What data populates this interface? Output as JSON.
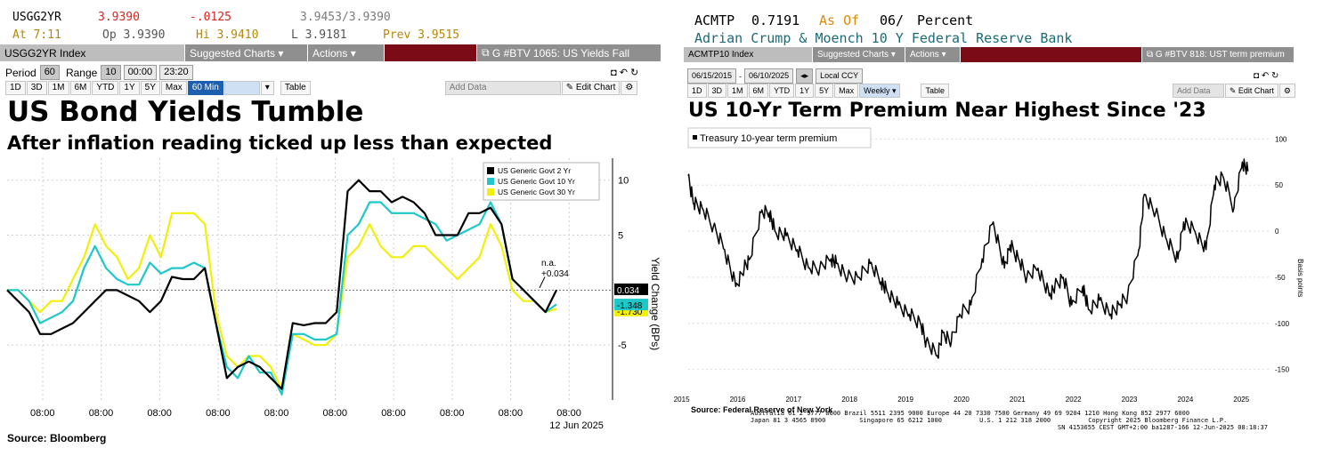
{
  "left": {
    "quote": {
      "ticker": "USGG2YR",
      "last": "3.9390",
      "change": "-.0125",
      "bidask": "3.9453/3.9390",
      "time": "At 7:11",
      "open": "Op 3.9390",
      "high": "Hi 3.9410",
      "low": "L 3.9181",
      "prev": "Prev 3.9515"
    },
    "toolbar": {
      "index": "USGG2YR Index",
      "suggested": "Suggested Charts",
      "actions": "Actions",
      "news": "G #BTV 1065: US Yields Fall"
    },
    "controls": {
      "period_label": "Period",
      "period": "60",
      "range_label": "Range",
      "range": "10",
      "start": "00:00",
      "end": "23:20"
    },
    "buttons": [
      "1D",
      "3D",
      "1M",
      "6M",
      "YTD",
      "1Y",
      "5Y",
      "Max",
      "60 Min"
    ],
    "table_label": "Table",
    "add_data": "Add Data",
    "edit_chart": "Edit Chart",
    "headline": "US Bond Yields Tumble",
    "subheadline": "After inflation reading ticked up less than expected",
    "source": "Source: Bloomberg",
    "colors": {
      "s2": "#000000",
      "s10": "#1ec8c8",
      "s30": "#f2ef0a"
    }
  },
  "right": {
    "quote": {
      "ticker": "ACMTP",
      "value": "0.7191",
      "asof": "As Of",
      "date": "06/",
      "unit": "Percent",
      "desc": "Adrian Crump & Moench 10 Y Federal Reserve Bank"
    },
    "toolbar": {
      "index": "ACMTP10 Index",
      "suggested": "Suggested Charts",
      "actions": "Actions",
      "news": "G #BTV 818: UST term premium"
    },
    "controls": {
      "start": "06/15/2015",
      "end": "06/10/2025",
      "currency": "Local CCY"
    },
    "buttons": [
      "1D",
      "3D",
      "1M",
      "6M",
      "YTD",
      "1Y",
      "5Y",
      "Max",
      "Weekly"
    ],
    "table_label": "Table",
    "add_data": "Add Data",
    "edit_chart": "Edit Chart",
    "headline": "US 10-Yr Term Premium Near Highest Since '23",
    "source": "Source: Federal Reserve of New York",
    "footer_line1": "Australia 61 2 9777 8600 Brazil 5511 2395 9000 Europe 44 20 7330 7500 Germany 49 69 9204 1210 Hong Kong 852 2977 6000",
    "footer_line2": "Japan 81 3 4565 8900         Singapore 65 6212 1000          U.S. 1 212 318 2000          Copyright 2025 Bloomberg Finance L.P.",
    "footer_line3": "SN 4153655 CEST GMT+2:00 ba1287-166 12-Jun-2025 08:18:37"
  },
  "chart_data": [
    {
      "type": "line",
      "title": "US Bond Yields Tumble",
      "subtitle": "After inflation reading ticked up less than expected",
      "ylabel": "Yield Change (BPs)",
      "x_tick_labels": [
        "08:00",
        "08:00",
        "08:00",
        "08:00",
        "08:00",
        "08:00",
        "08:00",
        "08:00",
        "08:00",
        "08:00\n12 Jun 2025"
      ],
      "y_ticks": [
        10,
        5,
        -5
      ],
      "ylim": [
        -10,
        12
      ],
      "annotation": "n.a.\n+0.034",
      "value_labels": {
        "s2": "0.034",
        "s10": "-1.348",
        "s30": "-1.730"
      },
      "series": [
        {
          "name": "US Generic Govt 2 Yr",
          "values": [
            0,
            -1,
            -2,
            -4,
            -4,
            -3.5,
            -3,
            -2,
            -1,
            0,
            0,
            -0.5,
            -1,
            -2,
            -1,
            1.2,
            1,
            1,
            2,
            -3,
            -8,
            -7,
            -6.5,
            -7,
            -8,
            -9,
            -3,
            -3.2,
            -3,
            -3,
            -2,
            9,
            10,
            9,
            9,
            8,
            8.5,
            8,
            7,
            5,
            5,
            5,
            7,
            7,
            7.5,
            6,
            1,
            0,
            -1,
            -2,
            0
          ]
        },
        {
          "name": "US Generic Govt 10 Yr",
          "values": [
            0,
            0,
            -1,
            -3,
            -2.5,
            -2,
            -1,
            2,
            4,
            2,
            1,
            0.5,
            0.5,
            2.5,
            1.5,
            2,
            2,
            2.5,
            2,
            -3,
            -7,
            -8,
            -6,
            -7.5,
            -7.5,
            -9.5,
            -4,
            -4,
            -4.5,
            -4.5,
            -4,
            5,
            6,
            8,
            8,
            7,
            7,
            7,
            6.5,
            6,
            4.5,
            5,
            5.5,
            6,
            8,
            6,
            1,
            0,
            -1,
            -2,
            -1.3
          ]
        },
        {
          "name": "US Generic Govt 30 Yr",
          "values": [
            0,
            0,
            -1,
            -2,
            -1,
            -1,
            1,
            3,
            6,
            4,
            3,
            1,
            2,
            5,
            3,
            7,
            7,
            7,
            6,
            -2,
            -6,
            -7,
            -6,
            -6,
            -7,
            -9,
            -4,
            -4.5,
            -5,
            -5,
            -4,
            3,
            4,
            6,
            4,
            3,
            3,
            4,
            4,
            3,
            2,
            1,
            2,
            3,
            6,
            4,
            0,
            -1,
            -1,
            -2,
            -1.7
          ]
        }
      ]
    },
    {
      "type": "line",
      "title": "US 10-Yr Term Premium Near Highest Since '23",
      "ylabel": "Basis points",
      "ylim": [
        -160,
        110
      ],
      "y_ticks": [
        100,
        50,
        0,
        -50,
        -100,
        -150
      ],
      "x_tick_labels": [
        "2015",
        "2016",
        "2017",
        "2018",
        "2019",
        "2020",
        "2021",
        "2022",
        "2023",
        "2024",
        "2025"
      ],
      "x_years": [
        2015,
        2016,
        2017,
        2018,
        2019,
        2020,
        2021,
        2022,
        2023,
        2024,
        2025
      ],
      "legend": "Treasury 10-year term premium",
      "series": [
        {
          "name": "Treasury 10-year term premium",
          "x": [
            2015.45,
            2015.55,
            2015.7,
            2015.9,
            2016.1,
            2016.3,
            2016.45,
            2016.55,
            2016.75,
            2016.9,
            2017.0,
            2017.2,
            2017.4,
            2017.6,
            2017.8,
            2018.0,
            2018.1,
            2018.3,
            2018.5,
            2018.7,
            2018.9,
            2019.0,
            2019.2,
            2019.4,
            2019.6,
            2019.7,
            2019.9,
            2020.0,
            2020.15,
            2020.3,
            2020.5,
            2020.7,
            2020.9,
            2021.1,
            2021.2,
            2021.35,
            2021.5,
            2021.7,
            2021.9,
            2022.0,
            2022.15,
            2022.3,
            2022.5,
            2022.6,
            2022.8,
            2023.0,
            2023.15,
            2023.3,
            2023.5,
            2023.6,
            2023.8,
            2024.0,
            2024.2,
            2024.3,
            2024.5,
            2024.7,
            2024.85,
            2025.0,
            2025.2,
            2025.35,
            2025.45
          ],
          "values": [
            60,
            30,
            25,
            5,
            -20,
            -60,
            -40,
            -30,
            20,
            20,
            0,
            -5,
            -20,
            -40,
            -40,
            -30,
            -35,
            -50,
            -50,
            -35,
            -55,
            -65,
            -80,
            -90,
            -100,
            -120,
            -135,
            -110,
            -120,
            -90,
            -80,
            -30,
            10,
            -40,
            -15,
            -30,
            -50,
            -40,
            -70,
            -60,
            -50,
            -80,
            -60,
            -85,
            -75,
            -90,
            -80,
            -70,
            -20,
            40,
            20,
            -10,
            -30,
            10,
            0,
            -20,
            50,
            60,
            25,
            75,
            65
          ]
        }
      ]
    }
  ]
}
